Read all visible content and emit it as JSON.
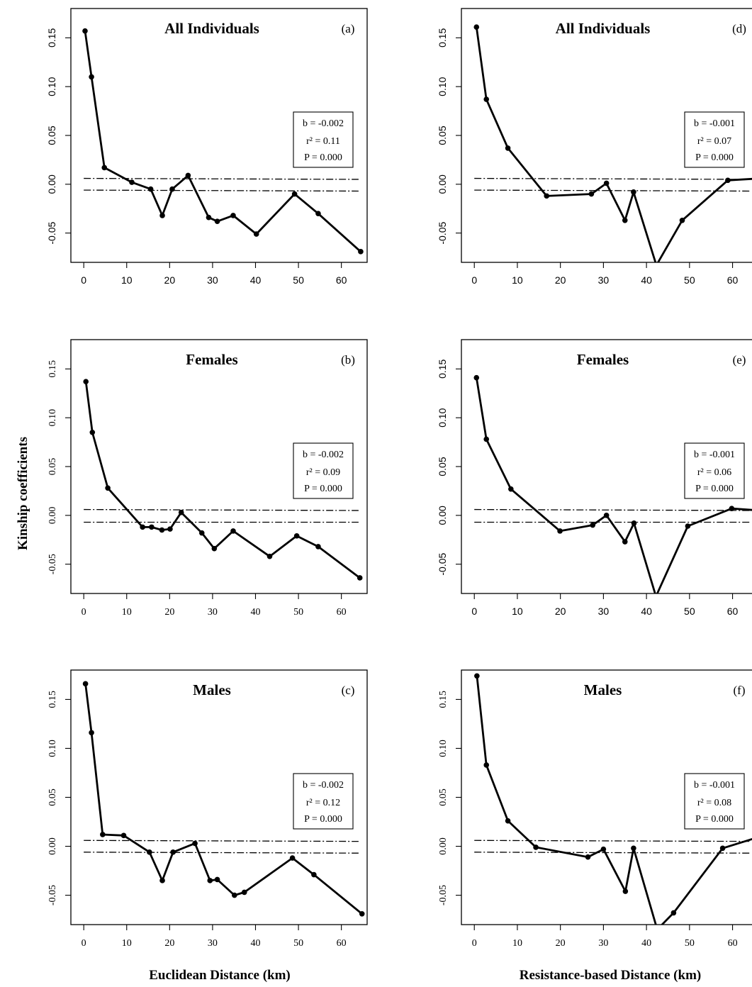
{
  "figure": {
    "ylabel": "Kinship coefficients",
    "xlabel_left": "Euclidean Distance (km)",
    "xlabel_right": "Resistance-based Distance (km)"
  },
  "chart_data": [
    {
      "id": "a",
      "type": "line",
      "title": "All Individuals",
      "panel_label": "(a)",
      "stats": {
        "b": "b = -0.002",
        "r2": "r² = 0.11",
        "p": "P = 0.000"
      },
      "xlim": [
        -3,
        66
      ],
      "ylim": [
        -0.08,
        0.18
      ],
      "xticks": [
        0,
        10,
        20,
        30,
        40,
        50,
        60
      ],
      "yticks": [
        -0.05,
        0.0,
        0.05,
        0.1,
        0.15
      ],
      "ytick_labels": [
        "-0.05",
        "0.00",
        "0.05",
        "0.10",
        "0.15"
      ],
      "x": [
        0.3,
        1.8,
        4.8,
        11.2,
        15.6,
        18.3,
        20.6,
        24.3,
        29.1,
        31.1,
        34.8,
        40.2,
        49.1,
        54.6,
        64.5
      ],
      "y": [
        0.157,
        0.11,
        0.017,
        0.002,
        -0.005,
        -0.032,
        -0.005,
        0.009,
        -0.034,
        -0.038,
        -0.032,
        -0.051,
        -0.01,
        -0.03,
        -0.069
      ],
      "ci_upper": [
        0.006,
        0.005
      ],
      "ci_lower": [
        -0.006,
        -0.007
      ]
    },
    {
      "id": "b",
      "type": "line",
      "title": "Females",
      "panel_label": "(b)",
      "stats": {
        "b": "b = -0.002",
        "r2": "r² = 0.09",
        "p": "P = 0.000"
      },
      "xlim": [
        -3,
        66
      ],
      "ylim": [
        -0.08,
        0.18
      ],
      "xticks": [
        0,
        10,
        20,
        30,
        40,
        50,
        60
      ],
      "yticks": [
        -0.05,
        0.0,
        0.05,
        0.1,
        0.15
      ],
      "ytick_labels": [
        "-0.05",
        "0.00",
        "0.05",
        "0.10",
        "0.15"
      ],
      "x": [
        0.5,
        2.0,
        5.6,
        13.7,
        15.8,
        18.2,
        20.1,
        22.7,
        27.5,
        30.4,
        34.8,
        43.3,
        49.6,
        54.6,
        64.3
      ],
      "y": [
        0.137,
        0.085,
        0.028,
        -0.012,
        -0.012,
        -0.015,
        -0.014,
        0.003,
        -0.018,
        -0.034,
        -0.016,
        -0.042,
        -0.021,
        -0.032,
        -0.064
      ],
      "ci_upper": [
        0.006,
        0.005
      ],
      "ci_lower": [
        -0.007,
        -0.007
      ]
    },
    {
      "id": "c",
      "type": "line",
      "title": "Males",
      "panel_label": "(c)",
      "stats": {
        "b": "b = -0.002",
        "r2": "r² = 0.12",
        "p": "P = 0.000"
      },
      "xlim": [
        -3,
        66
      ],
      "ylim": [
        -0.08,
        0.18
      ],
      "xticks": [
        0,
        10,
        20,
        30,
        40,
        50,
        60
      ],
      "yticks": [
        -0.05,
        0.0,
        0.05,
        0.1,
        0.15
      ],
      "ytick_labels": [
        "-0.05",
        "0.00",
        "0.05",
        "0.10",
        "0.15"
      ],
      "x": [
        0.4,
        1.8,
        4.4,
        9.3,
        15.3,
        18.3,
        20.8,
        25.9,
        29.4,
        31.1,
        35.1,
        37.4,
        48.6,
        53.6,
        64.8
      ],
      "y": [
        0.166,
        0.116,
        0.012,
        0.011,
        -0.006,
        -0.035,
        -0.006,
        0.003,
        -0.035,
        -0.034,
        -0.05,
        -0.047,
        -0.012,
        -0.029,
        -0.069
      ],
      "ci_upper": [
        0.006,
        0.005
      ],
      "ci_lower": [
        -0.006,
        -0.007
      ]
    },
    {
      "id": "d",
      "type": "line",
      "title": "All Individuals",
      "panel_label": "(d)",
      "stats": {
        "b": "b = -0.001",
        "r2": "r² = 0.07",
        "p": "P = 0.000"
      },
      "xlim": [
        -3,
        66
      ],
      "ylim": [
        -0.08,
        0.18
      ],
      "xticks": [
        0,
        10,
        20,
        30,
        40,
        50,
        60
      ],
      "yticks": [
        -0.05,
        0.0,
        0.05,
        0.1,
        0.15
      ],
      "ytick_labels": [
        "-0.05",
        "0.00",
        "0.05",
        "0.10",
        "0.15"
      ],
      "x": [
        0.5,
        2.8,
        7.8,
        16.8,
        27.2,
        30.7,
        35.0,
        37.0,
        42.3,
        48.3,
        58.9,
        66.5
      ],
      "y": [
        0.161,
        0.087,
        0.037,
        -0.012,
        -0.01,
        0.001,
        -0.037,
        -0.008,
        -0.083,
        -0.037,
        0.004,
        0.006
      ],
      "ci_upper": [
        0.006,
        0.005
      ],
      "ci_lower": [
        -0.006,
        -0.007
      ]
    },
    {
      "id": "e",
      "type": "line",
      "title": "Females",
      "panel_label": "(e)",
      "stats": {
        "b": "b = -0.001",
        "r2": "r² = 0.06",
        "p": "P = 0.000"
      },
      "xlim": [
        -3,
        66
      ],
      "ylim": [
        -0.08,
        0.18
      ],
      "xticks": [
        0,
        10,
        20,
        30,
        40,
        50,
        60
      ],
      "yticks": [
        -0.05,
        0.0,
        0.05,
        0.1,
        0.15
      ],
      "ytick_labels": [
        "-0.05",
        "0.00",
        "0.05",
        "0.10",
        "0.15"
      ],
      "x": [
        0.5,
        2.8,
        8.5,
        19.9,
        27.5,
        30.7,
        35.0,
        37.1,
        42.2,
        49.6,
        59.8,
        66.5
      ],
      "y": [
        0.141,
        0.078,
        0.027,
        -0.016,
        -0.01,
        0.0,
        -0.027,
        -0.008,
        -0.083,
        -0.011,
        0.007,
        0.005
      ],
      "ci_upper": [
        0.006,
        0.005
      ],
      "ci_lower": [
        -0.007,
        -0.007
      ]
    },
    {
      "id": "f",
      "type": "line",
      "title": "Males",
      "panel_label": "(f)",
      "stats": {
        "b": "b = -0.001",
        "r2": "r² = 0.08",
        "p": "P = 0.000"
      },
      "xlim": [
        -3,
        66
      ],
      "ylim": [
        -0.08,
        0.18
      ],
      "xticks": [
        0,
        10,
        20,
        30,
        40,
        50,
        60
      ],
      "yticks": [
        -0.05,
        0.0,
        0.05,
        0.1,
        0.15
      ],
      "ytick_labels": [
        "-0.05",
        "0.00",
        "0.05",
        "0.10",
        "0.15"
      ],
      "x": [
        0.6,
        2.8,
        7.8,
        14.3,
        26.4,
        30.0,
        35.1,
        37.0,
        42.5,
        46.3,
        57.7,
        66.5
      ],
      "y": [
        0.174,
        0.083,
        0.026,
        -0.001,
        -0.011,
        -0.003,
        -0.046,
        -0.002,
        -0.085,
        -0.068,
        -0.002,
        0.01
      ],
      "ci_upper": [
        0.006,
        0.005
      ],
      "ci_lower": [
        -0.006,
        -0.007
      ]
    }
  ]
}
